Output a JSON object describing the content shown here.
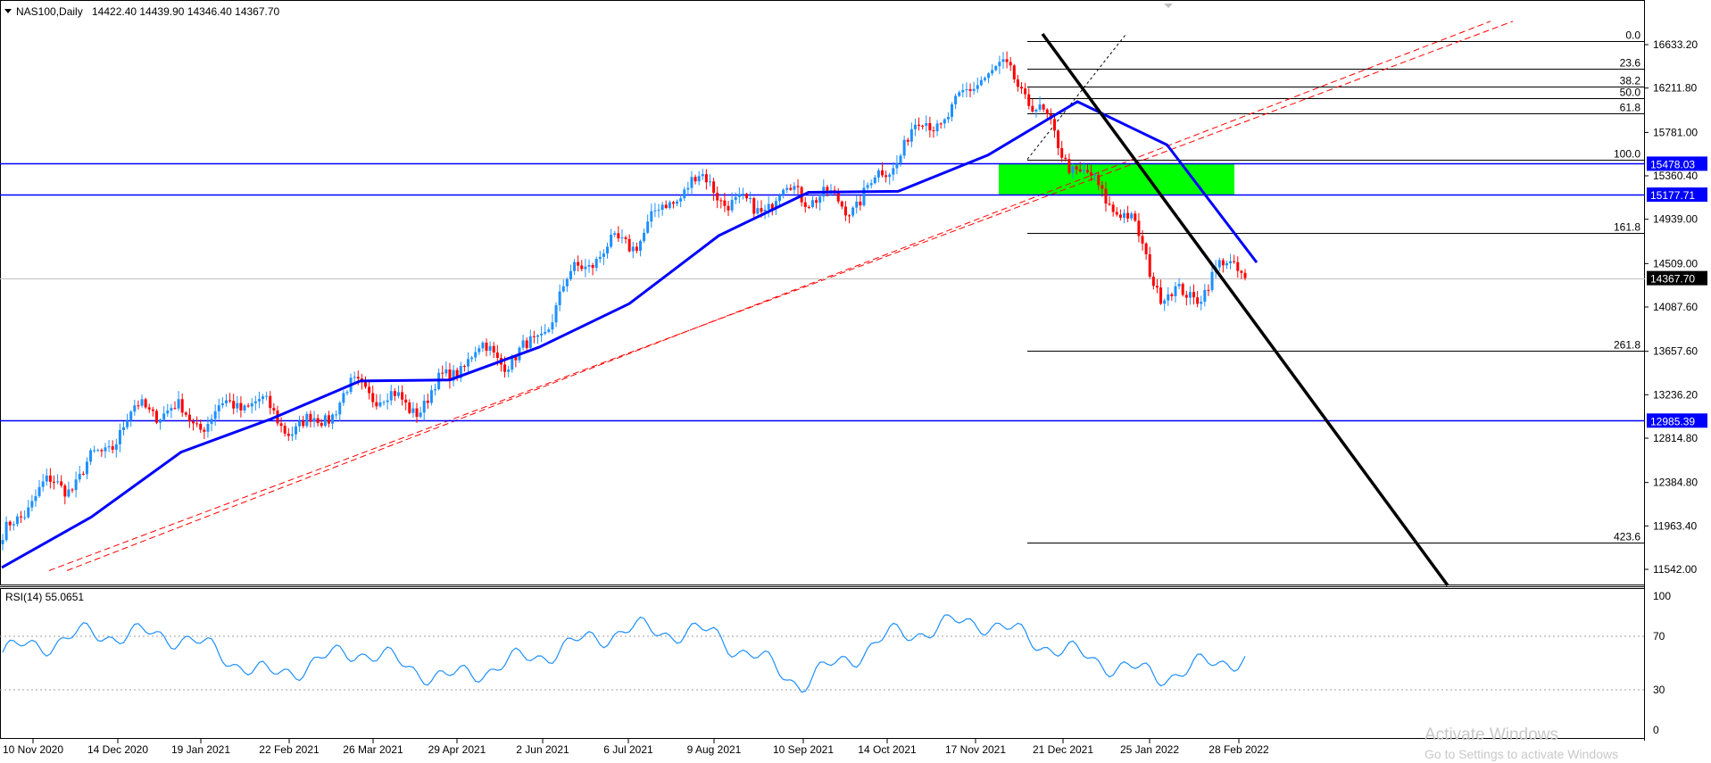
{
  "header": {
    "symbol": "NAS100,Daily",
    "ohlc": "14422.40 14439.90 14346.40 14367.70"
  },
  "rsi": {
    "label": "RSI(14) 55.0651",
    "levels": [
      100,
      70,
      30,
      0
    ],
    "dotted_levels": [
      70,
      30
    ]
  },
  "price_axis": {
    "ticks": [
      "16633.20",
      "16211.80",
      "15781.00",
      "15360.40",
      "14939.00",
      "14509.00",
      "14087.60",
      "13657.60",
      "13236.20",
      "12814.80",
      "12384.80",
      "11963.40",
      "11542.00"
    ],
    "tick_values": [
      16633.2,
      16211.8,
      15781.0,
      15360.4,
      14939.0,
      14509.0,
      14087.6,
      13657.6,
      13236.2,
      12814.8,
      12384.8,
      11963.4,
      11542.0
    ],
    "last_price": {
      "label": "14367.70",
      "value": 14367.7
    }
  },
  "horizontal_levels": [
    {
      "label": "15478.03",
      "value": 15478.03,
      "color": "#0000ff"
    },
    {
      "label": "15177.71",
      "value": 15177.71,
      "color": "#0000ff"
    },
    {
      "label": "12985.39",
      "value": 12985.39,
      "color": "#0000ff"
    }
  ],
  "fibonacci": {
    "levels": [
      {
        "label": "0.0",
        "value": 16670
      },
      {
        "label": "23.6",
        "value": 16400
      },
      {
        "label": "38.2",
        "value": 16230
      },
      {
        "label": "50.0",
        "value": 16110
      },
      {
        "label": "61.8",
        "value": 15965
      },
      {
        "label": "100.0",
        "value": 15520
      },
      {
        "label": "161.8",
        "value": 14810
      },
      {
        "label": "261.8",
        "value": 13660
      },
      {
        "label": "423.6",
        "value": 11800
      }
    ],
    "line_color": "#000000"
  },
  "time_axis": {
    "labels": [
      "10 Nov 2020",
      "14 Dec 2020",
      "19 Jan 2021",
      "22 Feb 2021",
      "26 Mar 2021",
      "29 Apr 2021",
      "2 Jun 2021",
      "6 Jul 2021",
      "9 Aug 2021",
      "10 Sep 2021",
      "14 Oct 2021",
      "17 Nov 2021",
      "21 Dec 2021",
      "25 Jan 2022",
      "28 Feb 2022"
    ]
  },
  "watermark": {
    "title": "Activate Windows",
    "subtitle": "Go to Settings to activate Windows"
  },
  "colors": {
    "bull": "#1e90ff",
    "bear": "#ff0000",
    "ma": "#0000ff",
    "trend": "#000000",
    "channel": "#ff0000",
    "zone": "#00ff00",
    "rsi_line": "#1e90ff"
  },
  "chart_data": {
    "type": "candlestick",
    "symbol": "NAS100",
    "timeframe": "Daily",
    "moving_average": {
      "x": [
        "10 Nov 2020",
        "14 Dec 2020",
        "19 Jan 2021",
        "22 Feb 2021",
        "26 Mar 2021",
        "29 Apr 2021",
        "2 Jun 2021",
        "6 Jul 2021",
        "9 Aug 2021",
        "10 Sep 2021",
        "14 Oct 2021",
        "17 Nov 2021",
        "21 Dec 2021",
        "25 Jan 2022",
        "28 Feb 2022"
      ],
      "values": [
        11560,
        12050,
        12680,
        13000,
        13370,
        13380,
        13700,
        14120,
        14780,
        15200,
        15210,
        15560,
        16080,
        15660,
        14520
      ]
    },
    "price_path": {
      "x": [
        "10 Nov 2020",
        "14 Dec 2020",
        "19 Jan 2021",
        "22 Feb 2021",
        "26 Mar 2021",
        "29 Apr 2021",
        "2 Jun 2021",
        "6 Jul 2021",
        "9 Aug 2021",
        "10 Sep 2021",
        "14 Oct 2021",
        "17 Nov 2021",
        "21 Dec 2021",
        "25 Jan 2022",
        "28 Feb 2022"
      ],
      "values": [
        11800,
        12700,
        13150,
        13000,
        13150,
        13350,
        13850,
        14850,
        15250,
        15050,
        15400,
        16450,
        15650,
        14300,
        14367.7
      ]
    },
    "rsi_values": [
      58,
      72,
      70,
      40,
      60,
      38,
      55,
      75,
      72,
      35,
      70,
      82,
      58,
      40,
      55
    ],
    "ylim": [
      11480,
      16760
    ]
  }
}
